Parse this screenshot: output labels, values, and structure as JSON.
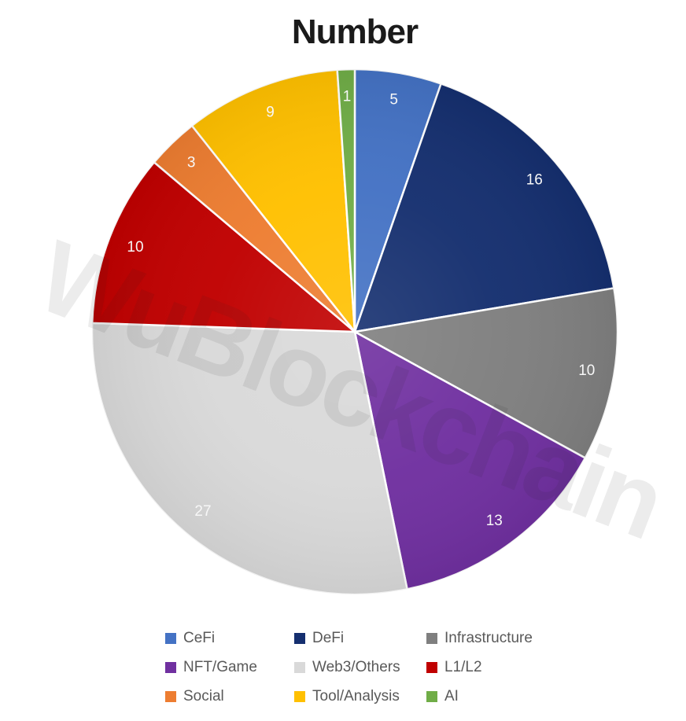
{
  "chart_data": {
    "type": "pie",
    "title": "Number",
    "total": 94,
    "start_angle_deg": 0,
    "direction": "clockwise",
    "grid": false,
    "legend_position": "bottom",
    "legend_columns": 3,
    "data_label_color": "#F7F7F7",
    "slices": [
      {
        "label": "CeFi",
        "value": 5,
        "color": "#4472C4"
      },
      {
        "label": "DeFi",
        "value": 16,
        "color": "#152F6F"
      },
      {
        "label": "Infrastructure",
        "value": 10,
        "color": "#7F7F7F"
      },
      {
        "label": "NFT/Game",
        "value": 13,
        "color": "#7030A0"
      },
      {
        "label": "Web3/Others",
        "value": 27,
        "color": "#D9D9D9"
      },
      {
        "label": "L1/L2",
        "value": 10,
        "color": "#C00000"
      },
      {
        "label": "Social",
        "value": 3,
        "color": "#ED7D31"
      },
      {
        "label": "Tool/Analysis",
        "value": 9,
        "color": "#FFC000"
      },
      {
        "label": "AI",
        "value": 1,
        "color": "#70AD47"
      }
    ]
  },
  "watermark": {
    "text": "WuBlockchain"
  }
}
